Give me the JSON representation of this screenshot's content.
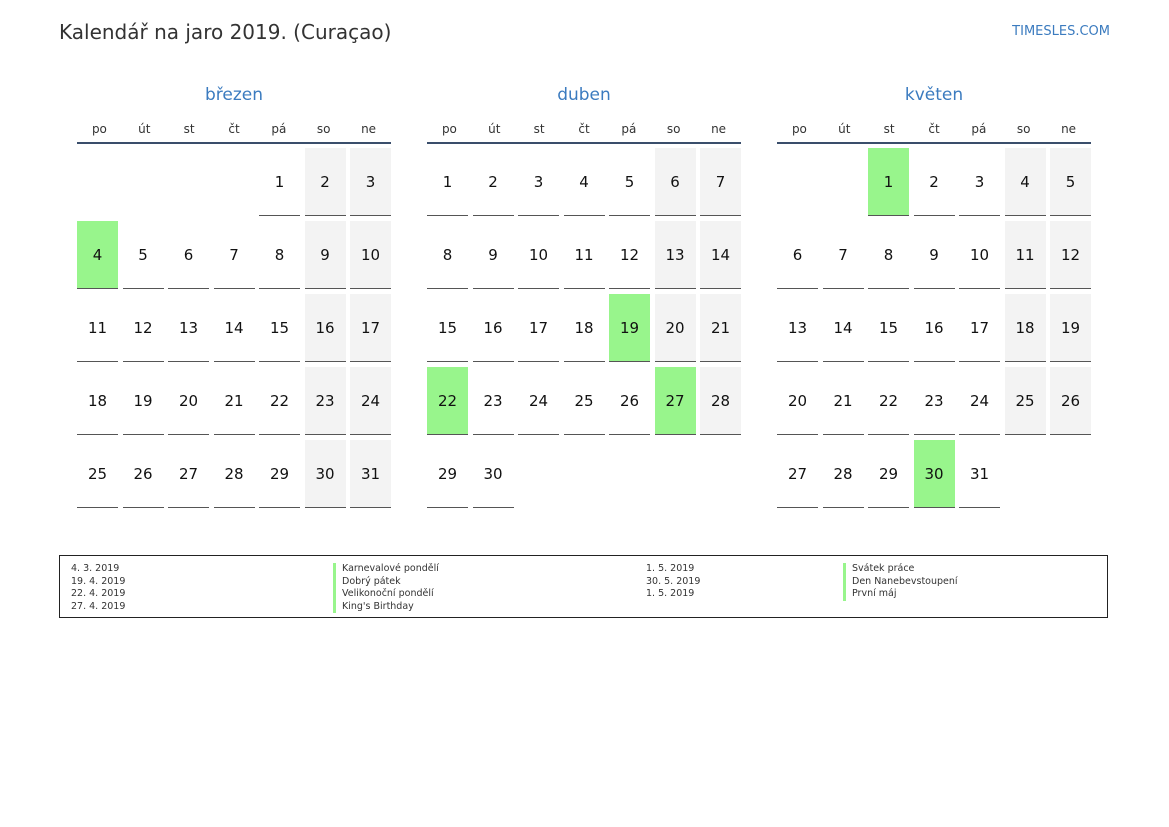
{
  "title": "Kalendář na jaro 2019. (Curaçao)",
  "brand": "TIMESLES.COM",
  "weekdays": [
    "po",
    "út",
    "st",
    "čt",
    "pá",
    "so",
    "ne"
  ],
  "colors": {
    "accent": "#3b7bbf",
    "holiday": "#98f58c",
    "weekend": "#f3f3f3"
  },
  "months": [
    {
      "name": "březen",
      "first_weekday": 4,
      "days": 31,
      "holidays": [
        4
      ]
    },
    {
      "name": "duben",
      "first_weekday": 0,
      "days": 30,
      "holidays": [
        19,
        22,
        27
      ]
    },
    {
      "name": "květen",
      "first_weekday": 2,
      "days": 31,
      "holidays": [
        1,
        30
      ]
    }
  ],
  "legend": {
    "left": [
      {
        "date": "4. 3. 2019",
        "name": "Karnevalové pondělí"
      },
      {
        "date": "19. 4. 2019",
        "name": "Dobrý pátek"
      },
      {
        "date": "22. 4. 2019",
        "name": "Velikonoční pondělí"
      },
      {
        "date": "27. 4. 2019",
        "name": "King's Birthday"
      }
    ],
    "right": [
      {
        "date": "1. 5. 2019",
        "name": "Svátek práce"
      },
      {
        "date": "30. 5. 2019",
        "name": "Den Nanebevstoupení"
      },
      {
        "date": "1. 5. 2019",
        "name": "První máj"
      }
    ]
  }
}
